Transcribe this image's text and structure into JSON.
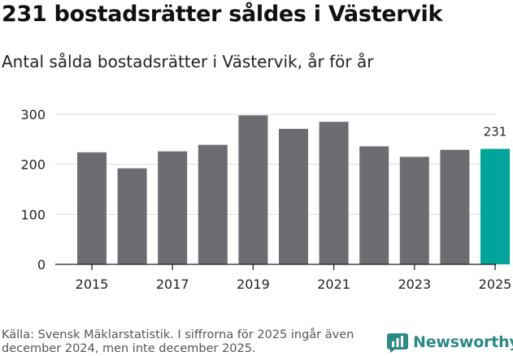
{
  "header": {
    "title": "231 bostadsrätter såldes i Västervik",
    "subtitle": "Antal sålda bostadsrätter i Västervik, år för år"
  },
  "footer": {
    "source": "Källa: Svensk Mäklarstatistik. I siffrorna för 2025 ingår även december 2024, men inte december 2025.",
    "brand": "Newsworthy"
  },
  "colors": {
    "bar": "#6d6c71",
    "highlight": "#00a49a",
    "brand": "#2a8a86",
    "grid": "#dddddd"
  },
  "chart_data": {
    "type": "bar",
    "title": "231 bostadsrätter såldes i Västervik",
    "subtitle": "Antal sålda bostadsrätter i Västervik, år för år",
    "xlabel": "",
    "ylabel": "",
    "categories": [
      "2015",
      "2016",
      "2017",
      "2018",
      "2019",
      "2020",
      "2021",
      "2022",
      "2023",
      "2024",
      "2025"
    ],
    "values": [
      224,
      192,
      226,
      239,
      298,
      271,
      285,
      236,
      215,
      229,
      231
    ],
    "x_tick_labels": [
      "2015",
      "2017",
      "2019",
      "2021",
      "2023",
      "2025"
    ],
    "y_ticks": [
      0,
      100,
      200,
      300
    ],
    "ylim": [
      0,
      310
    ],
    "highlight": {
      "category": "2025",
      "label": "231"
    },
    "grid": true
  }
}
